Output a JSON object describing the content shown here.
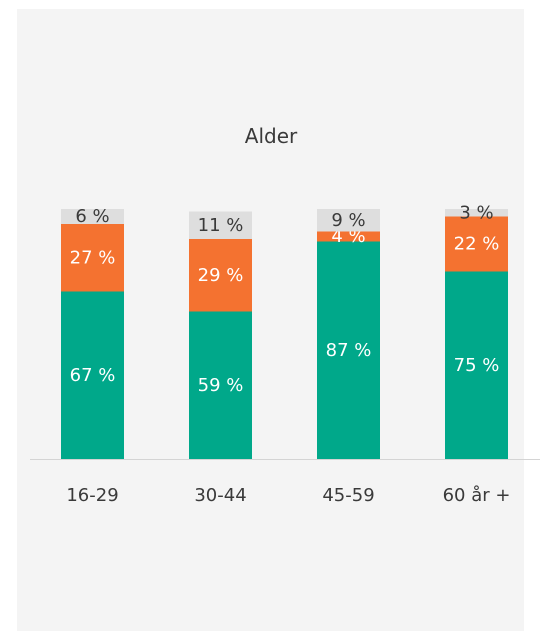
{
  "chart_data": {
    "type": "bar",
    "stacked": true,
    "title": "Alder",
    "categories": [
      "16-29",
      "30-44",
      "45-59",
      "60 år +"
    ],
    "series": [
      {
        "values": [
          67,
          59,
          87,
          75
        ],
        "labels": [
          "67 %",
          "59 %",
          "87 %",
          "75 %"
        ],
        "color": "#00a88a"
      },
      {
        "values": [
          27,
          29,
          4,
          22
        ],
        "labels": [
          "27 %",
          "29 %",
          "4 %",
          "22 %"
        ],
        "color": "#f47230"
      },
      {
        "values": [
          6,
          11,
          9,
          3
        ],
        "labels": [
          "6 %",
          "11 %",
          "9 %",
          "3 %"
        ],
        "color": "#dedede"
      }
    ],
    "ylim": [
      0,
      100
    ],
    "legend": "none",
    "grid": false
  }
}
